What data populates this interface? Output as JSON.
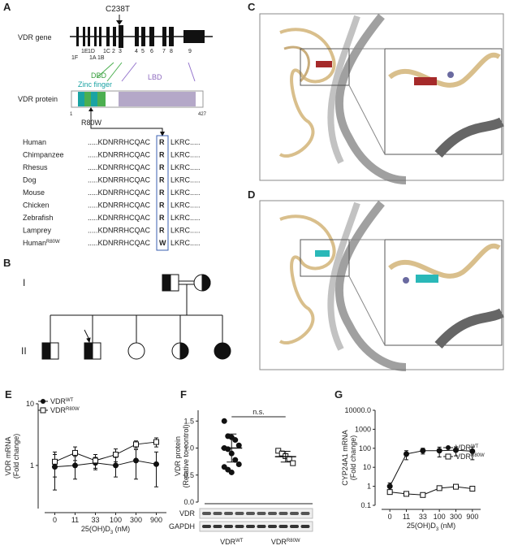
{
  "panel_a": {
    "label": "A",
    "gene_label": "VDR gene",
    "mutation": "C238T",
    "exons": [
      "1F",
      "1E",
      "1D",
      "1A",
      "1B",
      "1C",
      "2",
      "3",
      "4",
      "5",
      "6",
      "7",
      "8",
      "9"
    ],
    "domains": [
      "DBD",
      "Zinc finger",
      "LBD"
    ],
    "protein_label": "VDR protein",
    "protein_start": "1",
    "protein_end": "427",
    "variant": "R80W",
    "alignment": [
      {
        "species": "Human",
        "prefix": ".....KDNRRHCQAC",
        "residue": "R",
        "suffix": "LKRC....."
      },
      {
        "species": "Chimpanzee",
        "prefix": ".....KDNRRHCQAC",
        "residue": "R",
        "suffix": "LKRC....."
      },
      {
        "species": "Rhesus",
        "prefix": ".....KDNRRHCQAC",
        "residue": "R",
        "suffix": "LKRC....."
      },
      {
        "species": "Dog",
        "prefix": ".....KDNRRHCQAC",
        "residue": "R",
        "suffix": "LKRC....."
      },
      {
        "species": "Mouse",
        "prefix": ".....KDNRRHCQAC",
        "residue": "R",
        "suffix": "LKRC....."
      },
      {
        "species": "Chicken",
        "prefix": ".....KDNRRHCQAC",
        "residue": "R",
        "suffix": "LKRC....."
      },
      {
        "species": "Zebrafish",
        "prefix": ".....KDNRRHCQAC",
        "residue": "R",
        "suffix": "LKRC....."
      },
      {
        "species": "Lamprey",
        "prefix": ".....KDNRRHCQAC",
        "residue": "R",
        "suffix": "LKRC....."
      },
      {
        "species": "Human",
        "species_sup": "R80W",
        "prefix": ".....KDNRRHCQAC",
        "residue": "W",
        "suffix": "LKRC....."
      }
    ]
  },
  "panel_b": {
    "label": "B",
    "generations": [
      "I",
      "II"
    ]
  },
  "panel_c": {
    "label": "C"
  },
  "panel_d": {
    "label": "D"
  },
  "chart_data": [
    {
      "type": "line",
      "panel_label": "E",
      "log_y": true,
      "y_label": [
        "VDR mRNA",
        "(Fold change)"
      ],
      "x_label": {
        "text": "25(OH)D",
        "sub": "3",
        "after": " (nM)"
      },
      "categories": [
        "0",
        "11",
        "33",
        "100",
        "300",
        "900"
      ],
      "ylim": [
        0.2,
        10
      ],
      "yticks": [
        1,
        10
      ],
      "legend": "top-left",
      "series": [
        {
          "name": "VDR",
          "name_sup": "WT",
          "color": "#111111",
          "marker": "circle",
          "values": [
            0.95,
            1.0,
            1.1,
            1.0,
            1.2,
            1.05
          ],
          "errors": [
            0.55,
            0.4,
            0.25,
            0.35,
            0.6,
            0.6
          ]
        },
        {
          "name": "VDR",
          "name_sup": "R80W",
          "color": "#111111",
          "marker": "square",
          "values": [
            1.15,
            1.6,
            1.2,
            1.5,
            2.2,
            2.4
          ],
          "errors": [
            0.5,
            0.4,
            0.3,
            0.35,
            0.3,
            0.4
          ]
        }
      ]
    },
    {
      "type": "dot",
      "panel_label": "F",
      "y_label": [
        "VDR protein",
        "(Relative to control)"
      ],
      "ylim": [
        0,
        1.7
      ],
      "yticks": [
        {
          "value": 0,
          "label": "0.0"
        },
        {
          "value": 0.5,
          "label": "0.5"
        },
        {
          "value": 1,
          "label": "1.0"
        },
        {
          "value": 1.5,
          "label": "1.5"
        }
      ],
      "annotation": "n.s.",
      "blot_labels": [
        "VDR",
        "GAPDH"
      ],
      "groups": [
        {
          "name": "VDR",
          "name_sup": "WT",
          "marker": "circle",
          "color": "#111111",
          "values": [
            1.5,
            1.22,
            1.2,
            1.15,
            1.05,
            1.0,
            0.98,
            0.9,
            0.78,
            0.7,
            0.65,
            0.6,
            0.55
          ],
          "mean": 1.0,
          "sd": 0.26
        },
        {
          "name": "VDR",
          "name_sup": "R80W",
          "marker": "square",
          "color": "#111111",
          "values": [
            0.95,
            0.9,
            0.85,
            0.8,
            0.72
          ],
          "mean": 0.84,
          "sd": 0.1
        }
      ]
    },
    {
      "type": "line",
      "panel_label": "G",
      "log_y": true,
      "y_label": [
        "CYP24A1 mRNA",
        "(Fold change)"
      ],
      "x_label": {
        "text": "25(OH)D",
        "sub": "3",
        "after": " (nM)"
      },
      "categories": [
        "0",
        "11",
        "33",
        "100",
        "300",
        "900"
      ],
      "ylim": [
        0.1,
        10000
      ],
      "yticks": [
        0.1,
        1,
        10,
        100,
        1000,
        {
          "value": 10000,
          "label": "10000.0"
        }
      ],
      "legend": "right",
      "series": [
        {
          "name": "VDR",
          "name_sup": "WT",
          "color": "#111111",
          "marker": "circle",
          "values": [
            1.0,
            50,
            75,
            75,
            80,
            70
          ],
          "errors": [
            0.5,
            25,
            25,
            40,
            40,
            45
          ]
        },
        {
          "name": "VDR",
          "name_sup": "R80W",
          "color": "#111111",
          "marker": "square",
          "values": [
            0.5,
            0.4,
            0.35,
            0.8,
            0.95,
            0.75
          ],
          "errors": [
            0.05,
            0.05,
            0.04,
            0.08,
            0.08,
            0.06
          ]
        }
      ]
    }
  ]
}
